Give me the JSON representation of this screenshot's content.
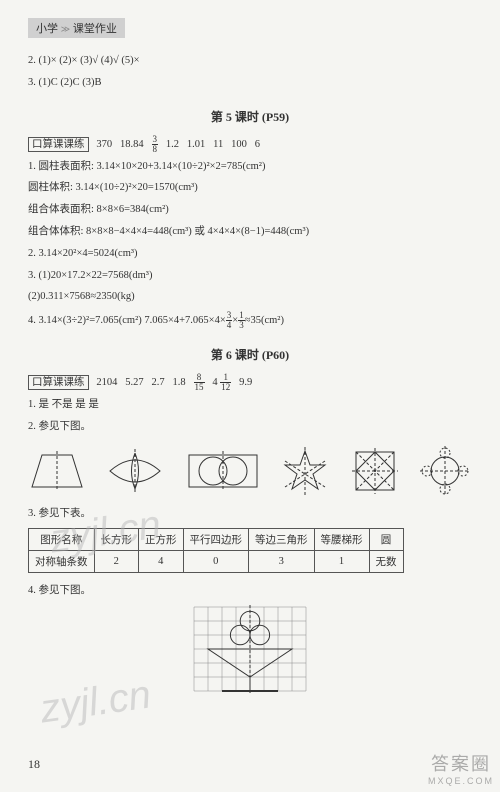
{
  "header": {
    "left": "小学",
    "right": "课堂作业"
  },
  "top_answers": {
    "l1": "2. (1)×   (2)×   (3)√   (4)√   (5)×",
    "l2": "3. (1)C   (2)C   (3)B"
  },
  "sec5": {
    "title": "第 5 课时 (P59)",
    "kousuan_label": "口算课课练",
    "kousuan_vals": [
      "370",
      "18.84",
      "FRAC_3_8",
      "1.2",
      "1.01",
      "11",
      "100",
      "6"
    ],
    "q1a": "1. 圆柱表面积: 3.14×10×20+3.14×(10÷2)²×2=785(cm²)",
    "q1b": "   圆柱体积: 3.14×(10÷2)²×20=1570(cm³)",
    "q1c": "   组合体表面积: 8×8×6=384(cm²)",
    "q1d": "   组合体体积: 8×8×8−4×4×4=448(cm³)   或 4×4×4×(8−1)=448(cm³)",
    "q2": "2. 3.14×20²×4=5024(cm³)",
    "q3a": "3. (1)20×17.2×22=7568(dm³)",
    "q3b": "   (2)0.311×7568≈2350(kg)",
    "q4": "4. 3.14×(3÷2)²=7.065(cm²)   7.065×4+7.065×4×FRAC_3_4×FRAC_1_3≈35(cm²)"
  },
  "sec6": {
    "title": "第 6 课时 (P60)",
    "kousuan_label": "口算课课练",
    "kousuan_vals": [
      "2104",
      "5.27",
      "2.7",
      "1.8",
      "FRAC_8_15",
      "4 FRAC_1_12",
      "9.9"
    ],
    "q1": "1. 是   不是   是   是",
    "q2": "2. 参见下图。",
    "q3": "3. 参见下表。",
    "table": {
      "head": [
        "图形名称",
        "长方形",
        "正方形",
        "平行四边形",
        "等边三角形",
        "等腰梯形",
        "圆"
      ],
      "row": [
        "对称轴条数",
        "2",
        "4",
        "0",
        "3",
        "1",
        "无数"
      ]
    },
    "q4": "4. 参见下图。"
  },
  "watermarks": {
    "w1": "zyjl.cn",
    "w2": "zyjl.cn"
  },
  "page_number": "18",
  "bottom_right": {
    "l1": "答案圈",
    "l2": "MXQE.COM"
  },
  "shapes": {
    "stroke": "#333",
    "fill": "none",
    "dash": "3,2"
  },
  "grid": {
    "cols": 8,
    "rows": 6,
    "cell": 14,
    "stroke": "#888",
    "ink": "#333"
  }
}
